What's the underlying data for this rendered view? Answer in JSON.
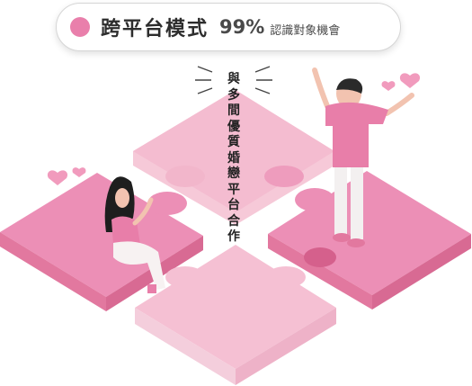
{
  "header": {
    "title": "跨平台模式",
    "percent": "99%",
    "subtitle": "認識對象機會"
  },
  "caption_chars": [
    "與",
    "多",
    "間",
    "優",
    "質",
    "婚",
    "戀",
    "平",
    "台",
    "合",
    "作"
  ],
  "colors": {
    "accent": "#e97fab",
    "puzzle_top": "#f3b3cb",
    "puzzle_dark": "#e882ad",
    "figure_shirt": "#e87ea9"
  },
  "icons": [
    "heart-icon",
    "heart-icon",
    "heart-icon",
    "heart-icon"
  ]
}
